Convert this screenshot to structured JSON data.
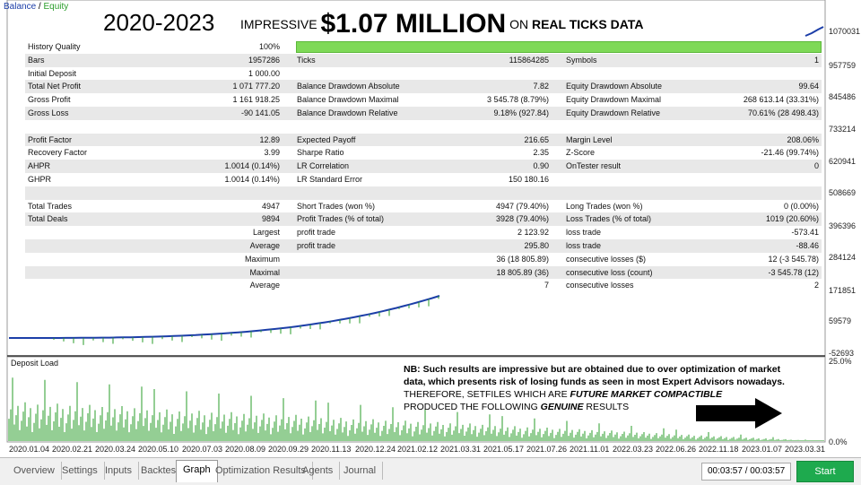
{
  "legend": {
    "balance": "Balance",
    "separator": " / ",
    "equity": "Equity"
  },
  "banner": {
    "years": "2020-2023",
    "impressive": "IMPRESSIVE",
    "amount": "$1.07 MILLION",
    "on": "ON",
    "real_ticks": "REAL TICKS",
    "data": "DATA"
  },
  "y_axis": [
    "1070031",
    "957759",
    "845486",
    "733214",
    "620941",
    "508669",
    "396396",
    "284124",
    "171851",
    "59579",
    "-52693"
  ],
  "deposit_axis": [
    "25.0%",
    "0.0%"
  ],
  "x_axis": [
    "2020.01.04",
    "2020.02.21",
    "2020.03.24",
    "2020.05.10",
    "2020.07.03",
    "2020.08.09",
    "2020.09.29",
    "2020.11.13",
    "2020.12.24",
    "2021.02.12",
    "2021.03.31",
    "2021.05.17",
    "2021.07.26",
    "2021.11.01",
    "2022.03.23",
    "2022.06.26",
    "2022.11.18",
    "2023.01.07",
    "2023.03.31"
  ],
  "stats": {
    "rows": [
      {
        "l1": "History Quality",
        "v1": "100%",
        "l2": "",
        "v2": "",
        "l3": "",
        "v3": "",
        "alt": false,
        "bar": true
      },
      {
        "l1": "Bars",
        "v1": "1957286",
        "l2": "Ticks",
        "v2": "115864285",
        "l3": "Symbols",
        "v3": "1",
        "alt": true
      },
      {
        "l1": "Initial Deposit",
        "v1": "1 000.00",
        "l2": "",
        "v2": "",
        "l3": "",
        "v3": "",
        "alt": false
      },
      {
        "l1": "Total Net Profit",
        "v1": "1 071 777.20",
        "l2": "Balance Drawdown Absolute",
        "v2": "7.82",
        "l3": "Equity Drawdown Absolute",
        "v3": "99.64",
        "alt": true
      },
      {
        "l1": "Gross Profit",
        "v1": "1 161 918.25",
        "l2": "Balance Drawdown Maximal",
        "v2": "3 545.78 (8.79%)",
        "l3": "Equity Drawdown Maximal",
        "v3": "268 613.14 (33.31%)",
        "alt": false
      },
      {
        "l1": "Gross Loss",
        "v1": "-90 141.05",
        "l2": "Balance Drawdown Relative",
        "v2": "9.18% (927.84)",
        "l3": "Equity Drawdown Relative",
        "v3": "70.61% (28 498.43)",
        "alt": true
      },
      {
        "blank": true,
        "alt": false
      },
      {
        "l1": "Profit Factor",
        "v1": "12.89",
        "l2": "Expected Payoff",
        "v2": "216.65",
        "l3": "Margin Level",
        "v3": "208.06%",
        "alt": true
      },
      {
        "l1": "Recovery Factor",
        "v1": "3.99",
        "l2": "Sharpe Ratio",
        "v2": "2.35",
        "l3": "Z-Score",
        "v3": "-21.46 (99.74%)",
        "alt": false
      },
      {
        "l1": "AHPR",
        "v1": "1.0014 (0.14%)",
        "l2": "LR Correlation",
        "v2": "0.90",
        "l3": "OnTester result",
        "v3": "0",
        "alt": true
      },
      {
        "l1": "GHPR",
        "v1": "1.0014 (0.14%)",
        "l2": "LR Standard Error",
        "v2": "150 180.16",
        "l3": "",
        "v3": "",
        "alt": false
      },
      {
        "blank": true,
        "alt": true
      },
      {
        "l1": "Total Trades",
        "v1": "4947",
        "l2": "Short Trades (won %)",
        "v2": "4947 (79.40%)",
        "l3": "Long Trades (won %)",
        "v3": "0 (0.00%)",
        "alt": false
      },
      {
        "l1": "Total Deals",
        "v1": "9894",
        "l2": "Profit Trades (% of total)",
        "v2": "3928 (79.40%)",
        "l3": "Loss Trades (% of total)",
        "v3": "1019 (20.60%)",
        "alt": true
      },
      {
        "l1": "",
        "v1": "Largest",
        "l2": "profit trade",
        "v2": "2 123.92",
        "l3": "loss trade",
        "v3": "-573.41",
        "alt": false
      },
      {
        "l1": "",
        "v1": "Average",
        "l2": "profit trade",
        "v2": "295.80",
        "l3": "loss trade",
        "v3": "-88.46",
        "alt": true
      },
      {
        "l1": "",
        "v1": "Maximum",
        "l2": "",
        "v2": "36 (18 805.89)",
        "l3": "consecutive losses ($)",
        "v3": "12 (-3 545.78)",
        "alt": false
      },
      {
        "l1": "",
        "v1": "Maximal",
        "l2": "",
        "v2": "18 805.89 (36)",
        "l3": "consecutive loss (count)",
        "v3": "-3 545.78 (12)",
        "alt": true
      },
      {
        "l1": "",
        "v1": "Average",
        "l2": "",
        "v2": "7",
        "l3": "consecutive losses",
        "v3": "2",
        "alt": false
      }
    ]
  },
  "deposit_load": {
    "label": "Deposit Load"
  },
  "note": {
    "line1": "NB: Such results are impressive but are obtained due to over optimization of market data, which presents risk of losing funds as seen in most Expert Advisors nowadays.",
    "line2a": "THEREFORE, SETFILES WHICH ARE ",
    "line2b": "FUTURE MARKET COMPACTIBLE",
    "line3a": "PRODUCED THE FOLLOWING ",
    "line3b": "GENUINE",
    "line3c": " RESULTS"
  },
  "tabs": [
    "Overview",
    "Settings",
    "Inputs",
    "Backtest",
    "Graph",
    "Optimization Results",
    "Agents",
    "Journal"
  ],
  "active_tab": "Graph",
  "timer": "00:03:57 / 00:03:57",
  "start_label": "Start",
  "colors": {
    "balance": "#1c3ea8",
    "equity": "#2a9d2a",
    "start": "#1eaa4e",
    "quality": "#7ed957"
  }
}
